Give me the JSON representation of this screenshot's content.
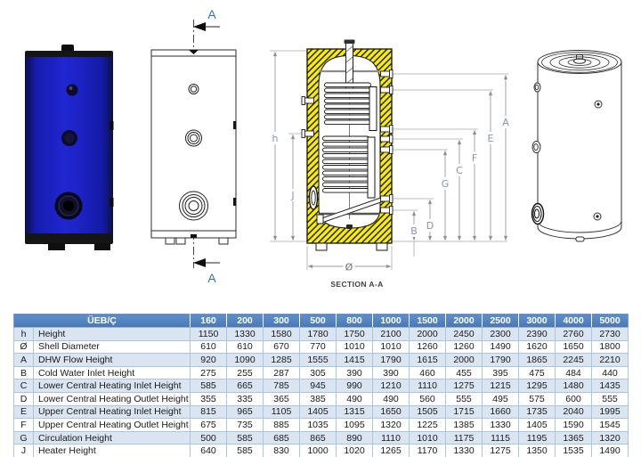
{
  "labels": {
    "h": "h",
    "J": "J",
    "A": "A",
    "B": "B",
    "C": "C",
    "D": "D",
    "E": "E",
    "F": "F",
    "G": "G",
    "diameter": "Ø",
    "section_mark": "A",
    "section_title": "SECTION A-A"
  },
  "colors": {
    "header_blue": "#4f81bd",
    "row_alt_blue": "#dbe5f1",
    "tank_blue": "#1f22c4",
    "insulation_yellow": "#f7ea12",
    "dim_label_gray_blue": "#8392bb",
    "section_mark_blue": "#2e74b5"
  },
  "table": {
    "corner": "ÜEB/Ç",
    "sizes": [
      "160",
      "200",
      "300",
      "500",
      "800",
      "1000",
      "1500",
      "2000",
      "2500",
      "3000",
      "4000",
      "5000"
    ],
    "rows": [
      {
        "key": "h",
        "name": "Height",
        "values": [
          "1150",
          "1330",
          "1580",
          "1780",
          "1750",
          "2100",
          "2000",
          "2450",
          "2300",
          "2390",
          "2760",
          "2730"
        ]
      },
      {
        "key": "Ø",
        "name": "Shell Diameter",
        "values": [
          "610",
          "610",
          "670",
          "770",
          "1010",
          "1010",
          "1260",
          "1260",
          "1490",
          "1620",
          "1650",
          "1800"
        ]
      },
      {
        "key": "A",
        "name": "DHW Flow Height",
        "values": [
          "920",
          "1090",
          "1285",
          "1555",
          "1415",
          "1790",
          "1615",
          "2000",
          "1790",
          "1865",
          "2245",
          "2210"
        ]
      },
      {
        "key": "B",
        "name": "Cold Water Inlet Height",
        "values": [
          "275",
          "255",
          "287",
          "305",
          "390",
          "390",
          "460",
          "455",
          "395",
          "475",
          "484",
          "440"
        ]
      },
      {
        "key": "C",
        "name": "Lower Central Heating Inlet Height",
        "values": [
          "585",
          "665",
          "785",
          "945",
          "990",
          "1210",
          "1110",
          "1275",
          "1215",
          "1295",
          "1480",
          "1435"
        ]
      },
      {
        "key": "D",
        "name": "Lower Central Heating Outlet Height",
        "values": [
          "355",
          "335",
          "365",
          "385",
          "490",
          "490",
          "560",
          "555",
          "495",
          "575",
          "600",
          "555"
        ]
      },
      {
        "key": "E",
        "name": "Upper Central Heating Inlet Height",
        "values": [
          "815",
          "965",
          "1105",
          "1405",
          "1315",
          "1650",
          "1505",
          "1715",
          "1660",
          "1735",
          "2040",
          "1995"
        ]
      },
      {
        "key": "F",
        "name": "Upper Central Heating Outlet Height",
        "values": [
          "675",
          "735",
          "885",
          "1035",
          "1095",
          "1320",
          "1225",
          "1385",
          "1330",
          "1405",
          "1590",
          "1545"
        ]
      },
      {
        "key": "G",
        "name": "Circulation Height",
        "values": [
          "500",
          "585",
          "685",
          "865",
          "890",
          "1110",
          "1010",
          "1175",
          "1115",
          "1195",
          "1365",
          "1320"
        ]
      },
      {
        "key": "J",
        "name": "Heater Height",
        "values": [
          "640",
          "585",
          "830",
          "1000",
          "1020",
          "1265",
          "1170",
          "1330",
          "1275",
          "1350",
          "1535",
          "1490"
        ]
      }
    ]
  }
}
